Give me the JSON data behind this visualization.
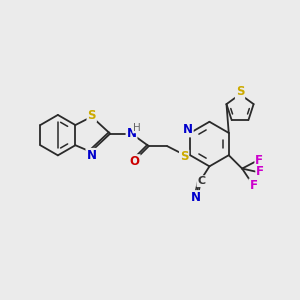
{
  "background_color": "#ebebeb",
  "figure_size": [
    3.0,
    3.0
  ],
  "dpi": 100,
  "bond_color": "#2a2a2a",
  "bond_width": 1.3,
  "atom_colors": {
    "S": "#ccaa00",
    "N": "#0000cc",
    "O": "#cc0000",
    "F": "#cc00cc",
    "C": "#333333",
    "H": "#666666"
  },
  "font_size_atoms": 8.5,
  "font_size_small": 7.0,
  "xlim": [
    0,
    10
  ],
  "ylim": [
    0,
    10
  ]
}
